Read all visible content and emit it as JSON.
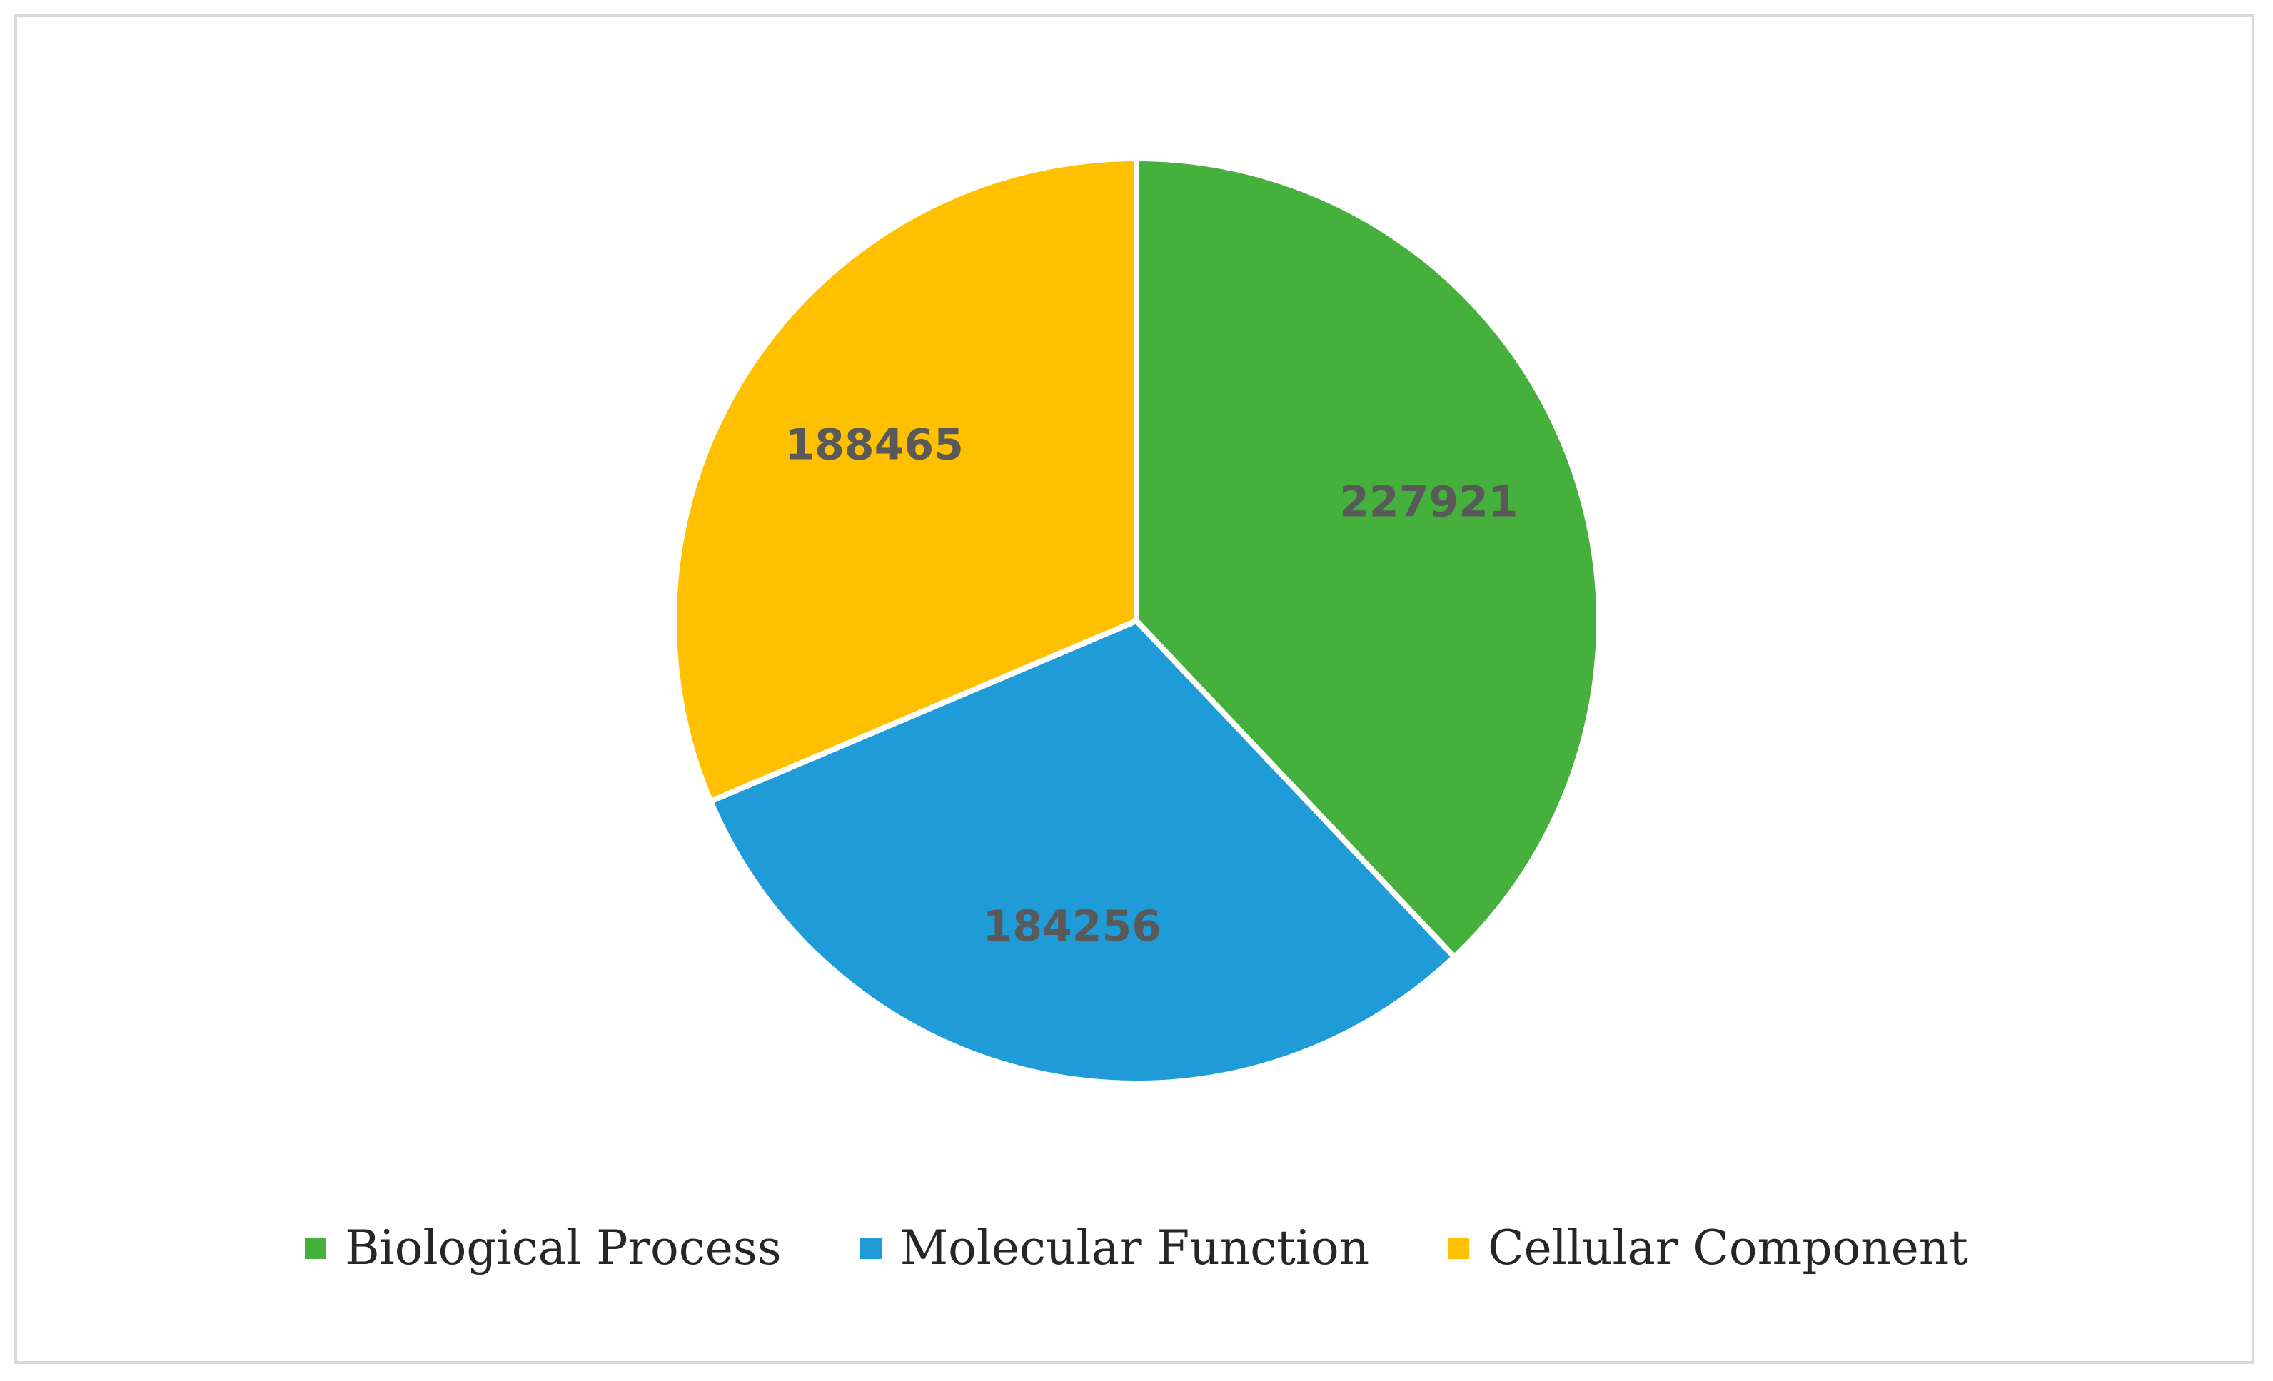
{
  "chart_data": {
    "type": "pie",
    "categories": [
      "Biological Process",
      "Molecular Function",
      "Cellular Component"
    ],
    "values": [
      227921,
      184256,
      188465
    ],
    "labels": [
      "227921",
      "184256",
      "188465"
    ],
    "colors": [
      "#45b03c",
      "#1f9bd8",
      "#ffc000"
    ],
    "start_angle_deg": 0,
    "direction": "clockwise",
    "legend_position": "bottom",
    "title": ""
  }
}
